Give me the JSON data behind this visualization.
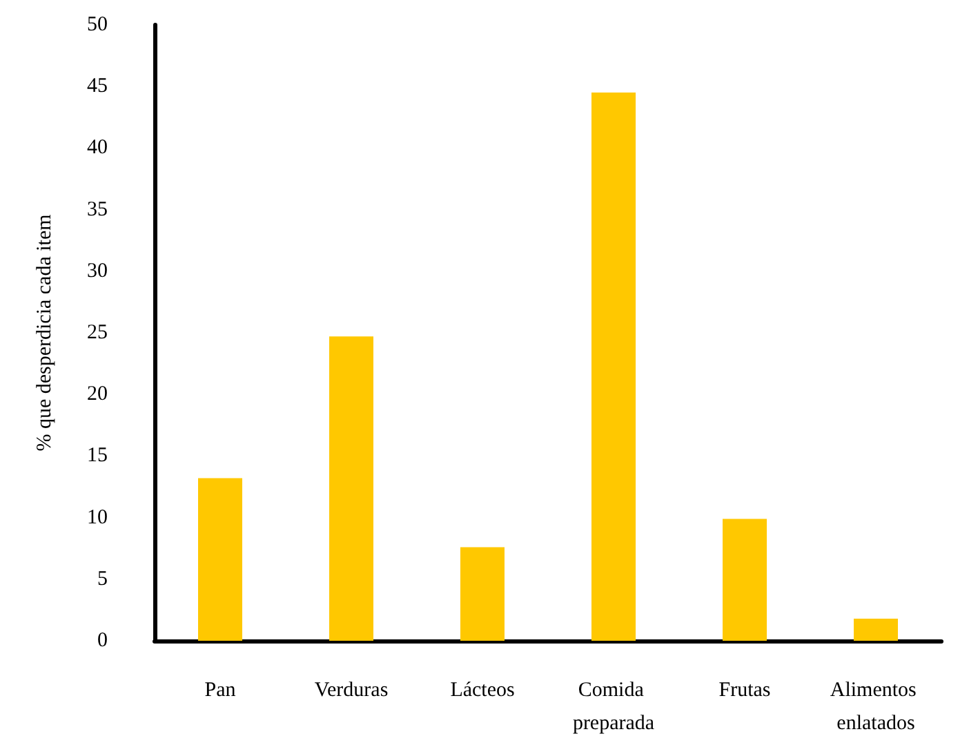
{
  "chart_data": {
    "type": "bar",
    "ylabel": "% que desperdicia cada item",
    "categories": [
      "Pan",
      "Verduras",
      "Lácteos",
      "Comida preparada",
      "Frutas",
      "Alimentos enlatados"
    ],
    "values": [
      13.2,
      24.7,
      7.6,
      44.5,
      9.9,
      1.8
    ],
    "color": "#ffc800",
    "ylim": [
      0,
      50
    ],
    "yticks": [
      0,
      5,
      10,
      15,
      20,
      25,
      30,
      35,
      40,
      45,
      50
    ],
    "grid": false
  }
}
